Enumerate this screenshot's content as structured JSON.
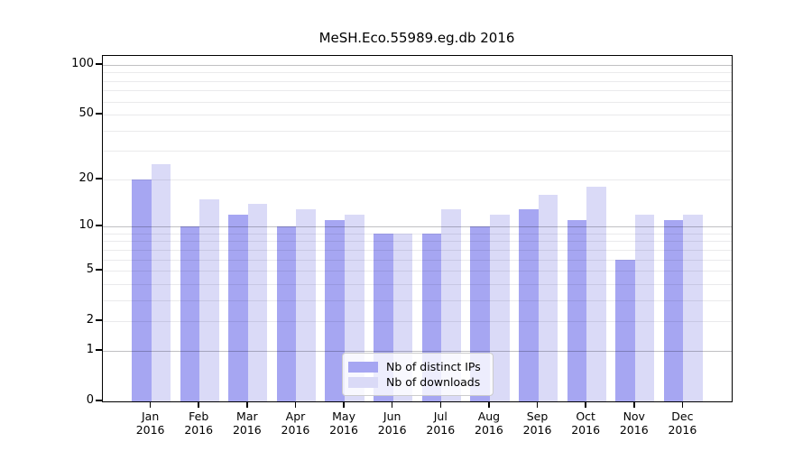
{
  "title": "MeSH.Eco.55989.eg.db 2016",
  "chart_data": {
    "type": "bar",
    "scale": "log1p",
    "title": "MeSH.Eco.55989.eg.db 2016",
    "categories": [
      "Jan",
      "Feb",
      "Mar",
      "Apr",
      "May",
      "Jun",
      "Jul",
      "Aug",
      "Sep",
      "Oct",
      "Nov",
      "Dec"
    ],
    "year": "2016",
    "series": [
      {
        "name": "Nb of distinct IPs",
        "color": "#a6a6f2",
        "values": [
          20,
          10,
          12,
          10,
          11,
          9,
          9,
          10,
          13,
          11,
          6,
          11
        ]
      },
      {
        "name": "Nb of downloads",
        "color": "#dadaf7",
        "values": [
          25,
          15,
          14,
          13,
          12,
          9,
          13,
          12,
          16,
          18,
          12,
          12
        ]
      }
    ],
    "y_ticks": [
      100,
      50,
      20,
      10,
      5,
      2,
      1,
      0
    ],
    "y_minor_gridlines": [
      2,
      3,
      4,
      5,
      6,
      7,
      8,
      9,
      20,
      30,
      40,
      50,
      60,
      70,
      80,
      90
    ],
    "y_major_gridlines": [
      1,
      10,
      100
    ],
    "ylim": [
      0,
      113
    ],
    "xlabel": "",
    "ylabel": "",
    "grid": "on",
    "legend_position": "bottom-center",
    "colors": {
      "grid_major": "#c0c0c3",
      "grid_minor": "#eaeaec",
      "axis": "#000000",
      "background": "#ffffff"
    }
  }
}
